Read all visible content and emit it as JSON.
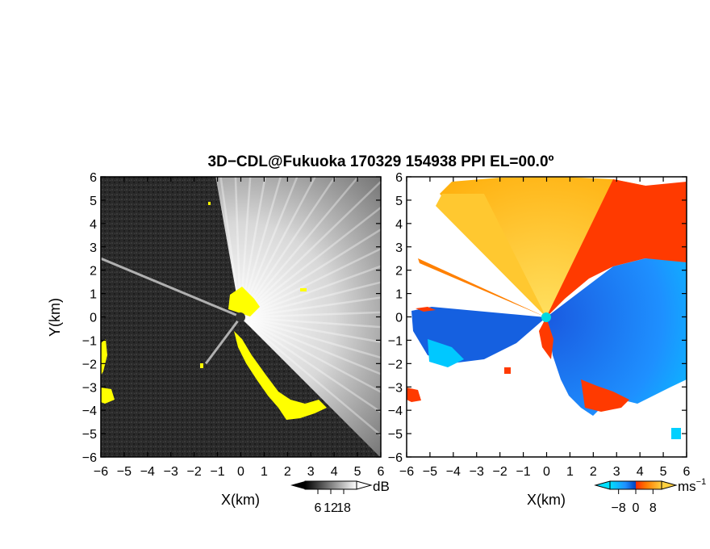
{
  "figure": {
    "title": "3D−CDL@Fukuoka 170329 154938 PPI EL=00.0º"
  },
  "colors": {
    "background": "#ffffff",
    "reflectivity_dark": "#262626",
    "reflectivity_light": "#f2f2f2",
    "reflectivity_highlight": "#ffff00",
    "velocity_negative_dark": "#0050c8",
    "velocity_negative_light": "#00e0ff",
    "velocity_zero": "#ff2a00",
    "velocity_positive": "#ffb000",
    "velocity_positive_light": "#ffe060",
    "radar_site": "#00d8e0"
  },
  "chart_data": [
    {
      "type": "heatmap",
      "name": "reflectivity",
      "xlabel": "X(km)",
      "ylabel": "Y(km)",
      "xlim": [
        -6,
        6
      ],
      "ylim": [
        -6,
        6
      ],
      "xticks": [
        -6,
        -5,
        -4,
        -3,
        -2,
        -1,
        0,
        1,
        2,
        3,
        4,
        5,
        6
      ],
      "yticks": [
        -6,
        -5,
        -4,
        -3,
        -2,
        -1,
        0,
        1,
        2,
        3,
        4,
        5,
        6
      ],
      "colorbar": {
        "unit": "dB",
        "ticks": [
          6,
          12,
          18
        ],
        "range": [
          0,
          24
        ]
      },
      "sectors_deg": [
        {
          "from": 135,
          "to": 215,
          "level": "low"
        },
        {
          "from": 225,
          "to": 315,
          "level": "low"
        },
        {
          "from": 315,
          "to": 460,
          "level": "high"
        }
      ],
      "features": [
        {
          "kind": "beam",
          "from": [
            0,
            0
          ],
          "to": [
            -6,
            2.5
          ]
        },
        {
          "kind": "beam",
          "from": [
            0,
            0
          ],
          "to": [
            -1.5,
            -2
          ]
        }
      ]
    },
    {
      "type": "heatmap",
      "name": "doppler_velocity",
      "xlabel": "X(km)",
      "ylabel": "",
      "xlim": [
        -6,
        6
      ],
      "ylim": [
        -6,
        6
      ],
      "xticks": [
        -6,
        -5,
        -4,
        -3,
        -2,
        -1,
        0,
        1,
        2,
        3,
        4,
        5,
        6
      ],
      "yticks": [
        -6,
        -5,
        -4,
        -3,
        -2,
        -1,
        0,
        1,
        2,
        3,
        4,
        5,
        6
      ],
      "colorbar": {
        "unit": "ms",
        "unit_exponent": "−1",
        "ticks": [
          -8,
          0,
          8
        ],
        "range": [
          -12,
          12
        ]
      },
      "regions_velocity_ms": [
        {
          "sector_deg": [
            60,
            135
          ],
          "velocity": 6
        },
        {
          "sector_deg": [
            10,
            60
          ],
          "velocity": 2
        },
        {
          "sector_deg": [
            -60,
            10
          ],
          "velocity": -8
        },
        {
          "sector_deg": [
            180,
            215
          ],
          "velocity": -6
        }
      ]
    }
  ]
}
